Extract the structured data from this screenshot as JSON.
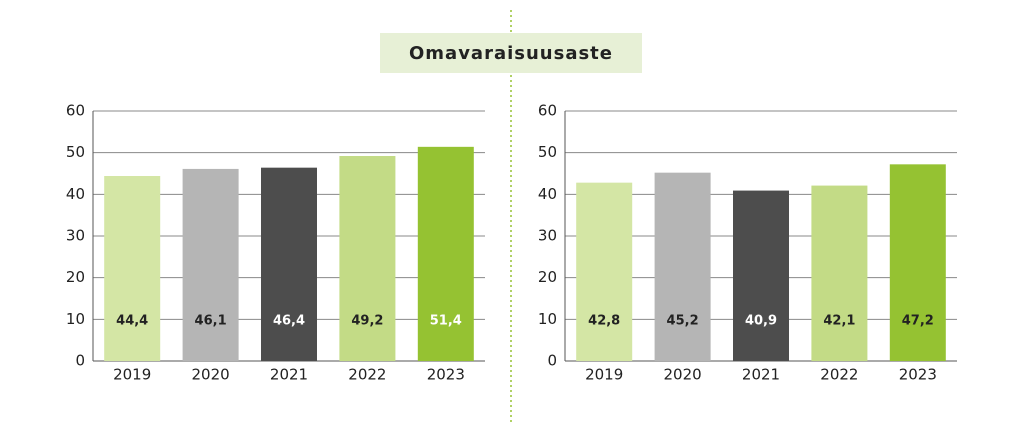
{
  "title": "Omavaraisuusaste",
  "chart_data": [
    {
      "type": "bar",
      "categories": [
        "2019",
        "2020",
        "2021",
        "2022",
        "2023"
      ],
      "values": [
        44.4,
        46.1,
        46.4,
        49.2,
        51.4
      ],
      "value_labels": [
        "44,4",
        "46,1",
        "46,4",
        "49,2",
        "51,4"
      ],
      "colors": [
        "#d4e6a5",
        "#b5b5b5",
        "#4d4d4d",
        "#c3db86",
        "#95c232"
      ],
      "label_colors": [
        "#222222",
        "#222222",
        "#ffffff",
        "#222222",
        "#ffffff"
      ],
      "ylim": [
        0,
        60
      ],
      "yticks": [
        0,
        10,
        20,
        30,
        40,
        50,
        60
      ],
      "grid": true
    },
    {
      "type": "bar",
      "categories": [
        "2019",
        "2020",
        "2021",
        "2022",
        "2023"
      ],
      "values": [
        42.8,
        45.2,
        40.9,
        42.1,
        47.2
      ],
      "value_labels": [
        "42,8",
        "45,2",
        "40,9",
        "42,1",
        "47,2"
      ],
      "colors": [
        "#d4e6a5",
        "#b5b5b5",
        "#4d4d4d",
        "#c3db86",
        "#95c232"
      ],
      "label_colors": [
        "#222222",
        "#222222",
        "#ffffff",
        "#222222",
        "#222222"
      ],
      "ylim": [
        0,
        60
      ],
      "yticks": [
        0,
        10,
        20,
        30,
        40,
        50,
        60
      ],
      "grid": true
    }
  ]
}
